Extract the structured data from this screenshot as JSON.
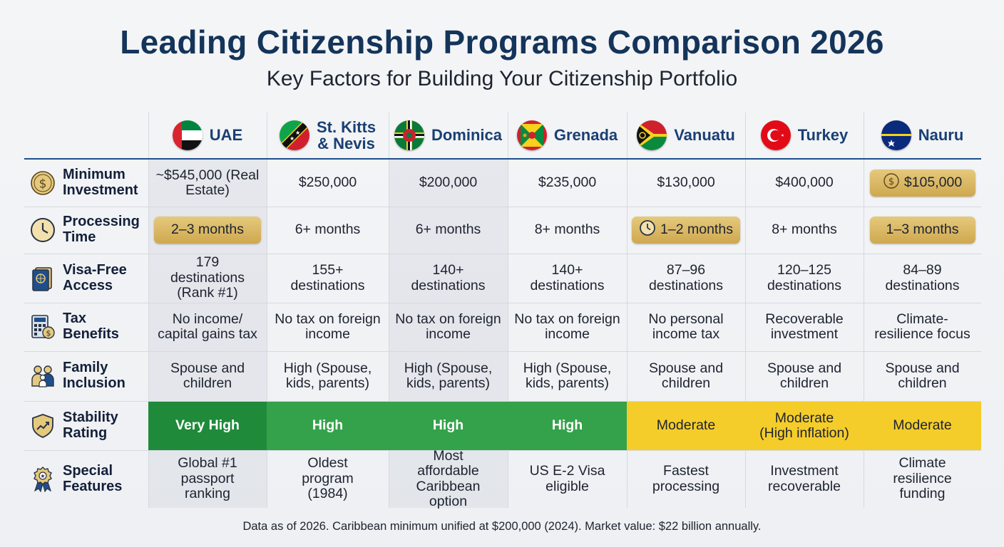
{
  "title": "Leading Citizenship Programs Comparison 2026",
  "subtitle": "Key Factors for Building Your Citizenship Portfolio",
  "countries": [
    {
      "name": "UAE",
      "flag": "uae-flag-icon"
    },
    {
      "name": "St. Kitts & Nevis",
      "flag": "st-kitts-nevis-flag-icon"
    },
    {
      "name": "Dominica",
      "flag": "dominica-flag-icon"
    },
    {
      "name": "Grenada",
      "flag": "grenada-flag-icon"
    },
    {
      "name": "Vanuatu",
      "flag": "vanuatu-flag-icon"
    },
    {
      "name": "Turkey",
      "flag": "turkey-flag-icon"
    },
    {
      "name": "Nauru",
      "flag": "nauru-flag-icon"
    }
  ],
  "rows": [
    {
      "label": "Minimum Investment",
      "icon": "dollar-coin-icon",
      "values": [
        "~$545,000 (Real Estate)",
        "$250,000",
        "$200,000",
        "$235,000",
        "$130,000",
        "$400,000",
        "$105,000"
      ]
    },
    {
      "label": "Processing Time",
      "icon": "clock-icon",
      "values": [
        "2–3 months",
        "6+ months",
        "6+ months",
        "8+ months",
        "1–2 months",
        "8+ months",
        "1–3 months"
      ]
    },
    {
      "label": "Visa-Free Access",
      "icon": "passport-icon",
      "values": [
        "179 destinations (Rank #1)",
        "155+ destinations",
        "140+ destinations",
        "140+ destinations",
        "87–96 destinations",
        "120–125 destinations",
        "84–89 destinations"
      ]
    },
    {
      "label": "Tax Benefits",
      "icon": "calculator-icon",
      "values": [
        "No income/ capital gains tax",
        "No tax on foreign income",
        "No tax on foreign income",
        "No tax on foreign income",
        "No personal income tax",
        "Recoverable investment",
        "Climate-resilience focus"
      ]
    },
    {
      "label": "Family Inclusion",
      "icon": "family-icon",
      "values": [
        "Spouse and children",
        "High (Spouse, kids, parents)",
        "High (Spouse, kids, parents)",
        "High (Spouse, kids, parents)",
        "Spouse and children",
        "Spouse and children",
        "Spouse and children"
      ]
    },
    {
      "label": "Stability Rating",
      "icon": "shield-chart-icon",
      "values": [
        "Very High",
        "High",
        "High",
        "High",
        "Moderate",
        "Moderate (High inflation)",
        "Moderate"
      ]
    },
    {
      "label": "Special Features",
      "icon": "award-ribbon-icon",
      "values": [
        "Global #1 passport ranking",
        "Oldest program (1984)",
        "Most affordable Caribbean option",
        "US E-2 Visa eligible",
        "Fastest processing",
        "Investment recoverable",
        "Climate resilience funding"
      ]
    }
  ],
  "highlights": {
    "gold_cells": [
      [
        0,
        6
      ],
      [
        1,
        0
      ],
      [
        1,
        4
      ],
      [
        1,
        6
      ]
    ],
    "coin_icon_cells": [
      [
        0,
        6
      ]
    ],
    "clock_icon_cells": [
      [
        1,
        4
      ]
    ]
  },
  "stability_colors": {
    "Very High": "#1f8a3a",
    "High": "#34a24b",
    "Moderate": "#f5cd2a"
  },
  "colors": {
    "title": "#14345a",
    "header_line": "#1f4e8c",
    "gold": "#d8b662"
  },
  "footnote": "Data as of 2026. Caribbean minimum unified at $200,000 (2024). Market value: $22 billion annually."
}
